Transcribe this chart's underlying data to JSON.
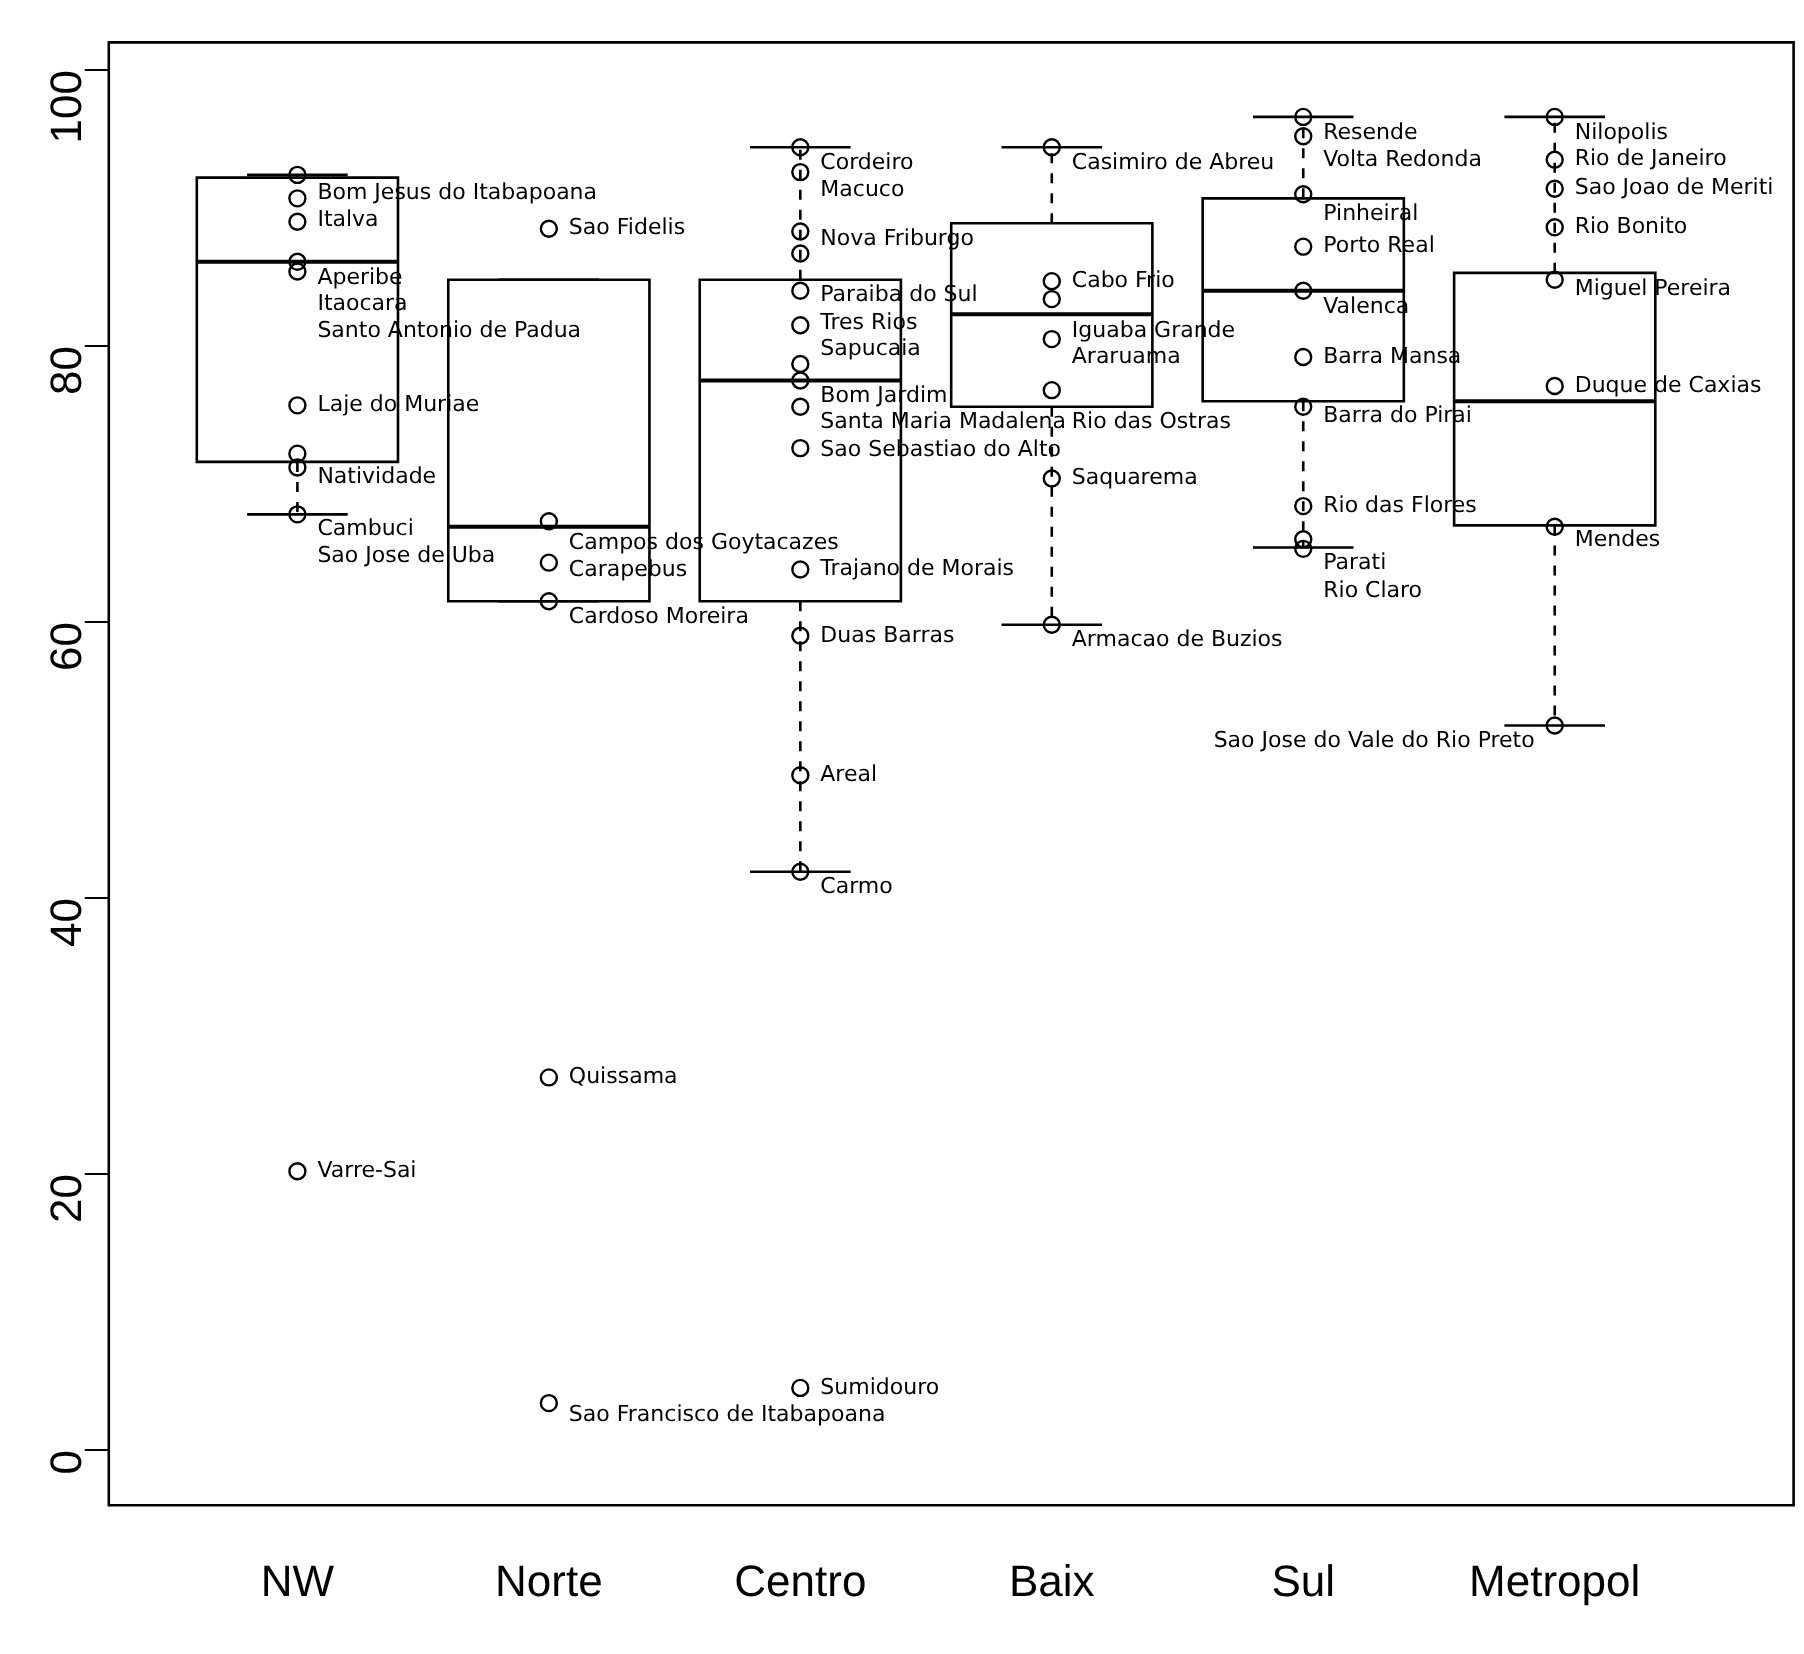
{
  "chart_data": {
    "type": "box",
    "categories": [
      "NW",
      "Norte",
      "Centro",
      "Baix",
      "Sul",
      "Metropol"
    ],
    "boxes": [
      {
        "low": 67.8,
        "q1": 71.6,
        "median": 86.1,
        "q3": 92.2,
        "high": 92.4
      },
      {
        "low": 61.5,
        "q1": 61.5,
        "median": 66.9,
        "q3": 84.8,
        "high": 84.8
      },
      {
        "low": 41.9,
        "q1": 61.5,
        "median": 77.5,
        "q3": 84.8,
        "high": 94.4
      },
      {
        "low": 59.8,
        "q1": 75.6,
        "median": 82.3,
        "q3": 88.9,
        "high": 94.4
      },
      {
        "low": 65.4,
        "q1": 76.0,
        "median": 84.0,
        "q3": 90.7,
        "high": 96.6
      },
      {
        "low": 52.5,
        "q1": 67.0,
        "median": 76.0,
        "q3": 85.3,
        "high": 96.6
      }
    ],
    "color": "#000000",
    "series": [
      {
        "type": "scatter",
        "color": "#000000",
        "x": [
          "NW",
          "NW",
          "NW",
          "NW",
          "NW",
          "NW",
          "NW",
          "NW",
          "NW",
          "NW",
          "Norte",
          "Norte",
          "Norte",
          "Norte",
          "Norte",
          "Norte",
          "Centro",
          "Centro",
          "Centro",
          "Centro",
          "Centro",
          "Centro",
          "Centro",
          "Centro",
          "Centro",
          "Centro",
          "Centro",
          "Centro",
          "Centro",
          "Centro",
          "Centro",
          "Baix",
          "Baix",
          "Baix",
          "Baix",
          "Baix",
          "Baix",
          "Baix",
          "Sul",
          "Sul",
          "Sul",
          "Sul",
          "Sul",
          "Sul",
          "Sul",
          "Sul",
          "Sul",
          "Sul",
          "Metropol",
          "Metropol",
          "Metropol",
          "Metropol",
          "Metropol",
          "Metropol",
          "Metropol",
          "Metropol"
        ],
        "values": [
          92.4,
          90.7,
          89.0,
          86.1,
          85.4,
          75.7,
          72.2,
          71.2,
          67.8,
          20.2,
          88.5,
          67.3,
          64.3,
          61.5,
          27.0,
          3.4,
          94.4,
          92.6,
          88.3,
          86.7,
          84.0,
          81.5,
          78.7,
          75.6,
          72.6,
          63.8,
          59.0,
          48.9,
          41.9,
          4.5,
          77.5,
          94.4,
          84.7,
          83.4,
          80.5,
          76.8,
          70.4,
          59.8,
          96.6,
          95.2,
          91.0,
          87.2,
          84.0,
          79.2,
          75.6,
          68.4,
          66.0,
          65.3,
          96.6,
          93.5,
          91.4,
          88.6,
          84.8,
          77.1,
          66.9,
          52.5
        ]
      }
    ],
    "ylim": [
      -4,
      102
    ],
    "yticks": [
      0,
      20,
      40,
      60,
      80,
      100
    ],
    "grid": false,
    "legend": false,
    "marker": "circle",
    "annotations": [
      {
        "text": "Bom Jesus do Itabapoana",
        "x": "NW",
        "y": 92.4
      },
      {
        "text": "Italva",
        "x": "NW",
        "y": 90.7
      },
      {
        "text": "Aperibe",
        "x": "NW",
        "y": 89.0
      },
      {
        "text": "Itaocara",
        "x": "NW",
        "y": 86.1
      },
      {
        "text": "Santo Antonio de Padua",
        "x": "NW",
        "y": 85.4
      },
      {
        "text": "Laje do Muriae",
        "x": "NW",
        "y": 75.7
      },
      {
        "text": "Natividade",
        "x": "NW",
        "y": 72.2
      },
      {
        "text": "Cambuci",
        "x": "NW",
        "y": 71.2
      },
      {
        "text": "Sao Jose de Uba",
        "x": "NW",
        "y": 67.8
      },
      {
        "text": "Varre-Sai",
        "x": "NW",
        "y": 20.2
      },
      {
        "text": "Sao Fidelis",
        "x": "Norte",
        "y": 88.5
      },
      {
        "text": "Campos dos Goytacazes",
        "x": "Norte",
        "y": 67.3
      },
      {
        "text": "Carapebus",
        "x": "Norte",
        "y": 64.3
      },
      {
        "text": "Cardoso Moreira",
        "x": "Norte",
        "y": 61.5
      },
      {
        "text": "Quissama",
        "x": "Norte",
        "y": 27.0
      },
      {
        "text": "Sao Francisco de Itabapoana",
        "x": "Norte",
        "y": 3.4
      },
      {
        "text": "Cordeiro",
        "x": "Centro",
        "y": 94.4
      },
      {
        "text": "Macuco",
        "x": "Centro",
        "y": 92.6
      },
      {
        "text": "Nova Friburgo",
        "x": "Centro",
        "y": 88.3
      },
      {
        "text": "Paraiba do Sul",
        "x": "Centro",
        "y": 86.7
      },
      {
        "text": "Tres Rios",
        "x": "Centro",
        "y": 84.0
      },
      {
        "text": "Sapucaia",
        "x": "Centro",
        "y": 81.5
      },
      {
        "text": "Bom Jardim",
        "x": "Centro",
        "y": 78.7
      },
      {
        "text": "Santa Maria Madalena",
        "x": "Centro",
        "y": 75.6
      },
      {
        "text": "Sao Sebastiao do Alto",
        "x": "Centro",
        "y": 72.6
      },
      {
        "text": "Trajano de Morais",
        "x": "Centro",
        "y": 63.8
      },
      {
        "text": "Duas Barras",
        "x": "Centro",
        "y": 59.0
      },
      {
        "text": "Areal",
        "x": "Centro",
        "y": 48.9
      },
      {
        "text": "Carmo",
        "x": "Centro",
        "y": 41.9
      },
      {
        "text": "Sumidouro",
        "x": "Centro",
        "y": 4.5
      },
      {
        "text": "Casimiro de Abreu",
        "x": "Baix",
        "y": 94.4
      },
      {
        "text": "Cabo Frio",
        "x": "Baix",
        "y": 84.7
      },
      {
        "text": "Iguaba Grande",
        "x": "Baix",
        "y": 83.4
      },
      {
        "text": "Araruama",
        "x": "Baix",
        "y": 80.5
      },
      {
        "text": "Rio das Ostras",
        "x": "Baix",
        "y": 76.8
      },
      {
        "text": "Saquarema",
        "x": "Baix",
        "y": 70.4
      },
      {
        "text": "Armacao de Buzios",
        "x": "Baix",
        "y": 59.8
      },
      {
        "text": "Resende",
        "x": "Sul",
        "y": 96.6
      },
      {
        "text": "Volta Redonda",
        "x": "Sul",
        "y": 95.2
      },
      {
        "text": "Pinheiral",
        "x": "Sul",
        "y": 91.0
      },
      {
        "text": "Porto Real",
        "x": "Sul",
        "y": 87.2
      },
      {
        "text": "Valenca",
        "x": "Sul",
        "y": 84.0
      },
      {
        "text": "Barra Mansa",
        "x": "Sul",
        "y": 79.2
      },
      {
        "text": "Barra do Pirai",
        "x": "Sul",
        "y": 75.6
      },
      {
        "text": "Rio das Flores",
        "x": "Sul",
        "y": 68.4
      },
      {
        "text": "Parati",
        "x": "Sul",
        "y": 66.0
      },
      {
        "text": "Rio Claro",
        "x": "Sul",
        "y": 65.3
      },
      {
        "text": "Nilopolis",
        "x": "Metropol",
        "y": 96.6
      },
      {
        "text": "Rio de Janeiro",
        "x": "Metropol",
        "y": 93.5
      },
      {
        "text": "Sao Joao de Meriti",
        "x": "Metropol",
        "y": 91.4
      },
      {
        "text": "Rio Bonito",
        "x": "Metropol",
        "y": 88.6
      },
      {
        "text": "Miguel Pereira",
        "x": "Metropol",
        "y": 84.8
      },
      {
        "text": "Duque de Caxias",
        "x": "Metropol",
        "y": 77.1
      },
      {
        "text": "Mendes",
        "x": "Metropol",
        "y": 66.9
      },
      {
        "text": "Sao Jose do Vale do Rio Preto",
        "x": "Metropol",
        "y": 52.5
      }
    ]
  }
}
